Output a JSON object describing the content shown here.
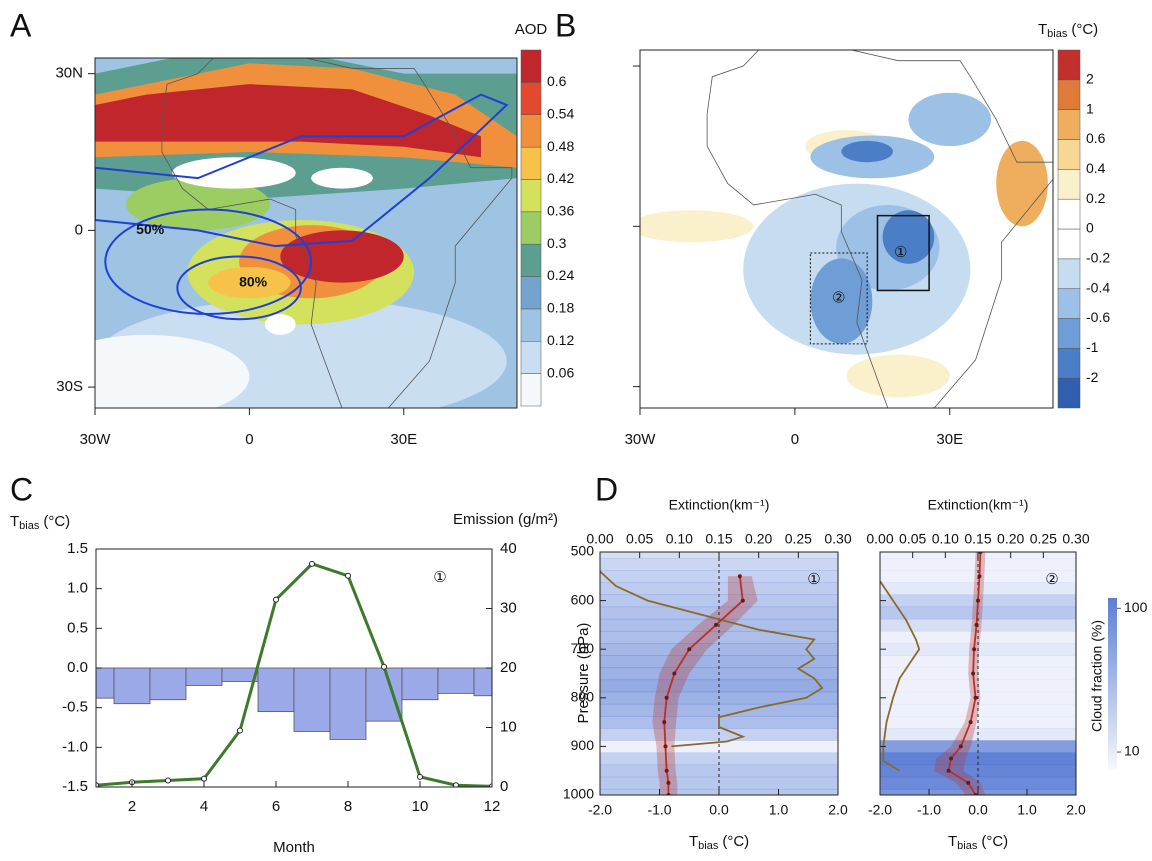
{
  "chart_data": [
    {
      "type": "map",
      "panel": "A",
      "xlim": [
        -30,
        52
      ],
      "ylim": [
        -34,
        33
      ],
      "xticks": [
        {
          "value": -30,
          "label": "30W"
        },
        0,
        {
          "value": 30,
          "label": "30E"
        }
      ],
      "yticks": [
        {
          "value": 30,
          "label": "30N"
        },
        0,
        {
          "value": -30,
          "label": "30S"
        }
      ],
      "colorbar_title": "AOD",
      "colorbar_ticks": [
        0.06,
        0.12,
        0.18,
        0.24,
        0.3,
        0.36,
        0.42,
        0.48,
        0.54,
        0.6
      ],
      "colorbar_colors": [
        "#f5f8fb",
        "#c9def0",
        "#9fc4e3",
        "#74a3d0",
        "#5c9f90",
        "#9ccd63",
        "#d3e15c",
        "#f6c24a",
        "#f0903c",
        "#e2492f",
        "#c1262c"
      ],
      "annotations": [
        "50%",
        "80%"
      ],
      "annotation_color": "#1f3fd8"
    },
    {
      "type": "map",
      "panel": "B",
      "xlim": [
        -30,
        50
      ],
      "ylim": [
        -34,
        33
      ],
      "xticks": [
        {
          "value": -30,
          "label": "30W"
        },
        0,
        {
          "value": 30,
          "label": "30E"
        }
      ],
      "colorbar_title": {
        "text": "T",
        "subscript": "bias",
        "unit": "(°C)"
      },
      "colorbar_ticks": [
        -2,
        -1,
        -0.6,
        -0.4,
        -0.2,
        0,
        0.2,
        0.4,
        0.6,
        1,
        2
      ],
      "colorbar_colors": [
        "#2f5fae",
        "#4a7ec6",
        "#6f9dd6",
        "#9dc0e6",
        "#c6dcf1",
        "#ffffff",
        "#ffffff",
        "#fbf0cc",
        "#f7d793",
        "#efae5e",
        "#e07a38",
        "#c1302c"
      ],
      "annotations": [
        "②",
        "①"
      ]
    },
    {
      "type": "bar_line",
      "panel": "C",
      "x": [
        1,
        2,
        3,
        4,
        5,
        6,
        7,
        8,
        9,
        10,
        11,
        12
      ],
      "xlim": [
        1,
        12
      ],
      "xticks": [
        2,
        4,
        6,
        8,
        10,
        12
      ],
      "xlabel": "Month",
      "ylabel": {
        "text": "T",
        "subscript": "bias",
        "unit": "(°C)"
      },
      "ylim": [
        -1.5,
        1.5
      ],
      "yticks": [
        -1.5,
        {
          "value": -1,
          "label": "-1.0"
        },
        -0.5,
        {
          "value": 0,
          "label": "0.0"
        },
        0.5,
        {
          "value": 1,
          "label": "1.0"
        },
        1.5
      ],
      "y2label": "Emission (g/m²)",
      "y2label_color": "#3d7a2b",
      "y2lim": [
        0,
        40
      ],
      "y2ticks": [
        0,
        10,
        20,
        30,
        40
      ],
      "annotation": "①",
      "series": [
        {
          "type": "bar",
          "color": "#9ba9e8",
          "values": [
            -0.38,
            -0.45,
            -0.4,
            -0.22,
            -0.17,
            -0.55,
            -0.8,
            -0.9,
            -0.67,
            -0.4,
            -0.32,
            -0.35
          ]
        },
        {
          "type": "line",
          "axis": "y2",
          "color": "#3d7a2b",
          "values": [
            0.3,
            0.8,
            1.1,
            1.4,
            9.5,
            31.5,
            37.5,
            35.5,
            20.2,
            1.7,
            0.3,
            0.1
          ]
        }
      ]
    },
    {
      "type": "profile",
      "panel": "D",
      "ylabel": "Pressure (hPa)",
      "ylim": [
        500,
        1000
      ],
      "y_inverted": true,
      "yticks": [
        500,
        600,
        700,
        800,
        900,
        1000
      ],
      "xlabel": {
        "text": "T",
        "subscript": "bias",
        "unit": "(°C)"
      },
      "xlim": [
        -2,
        2
      ],
      "xticks": [
        {
          "value": -2,
          "label": "-2.0"
        },
        {
          "value": -1,
          "label": "-1.0"
        },
        {
          "value": 0,
          "label": "0.0"
        },
        {
          "value": 1,
          "label": "1.0"
        },
        {
          "value": 2,
          "label": "2.0"
        }
      ],
      "x2label": "Extinction(km⁻¹)",
      "x2lim": [
        0,
        0.3
      ],
      "x2ticks": [
        {
          "value": 0,
          "label": "0.00"
        },
        0.05,
        {
          "value": 0.1,
          "label": "0.10"
        },
        0.15,
        {
          "value": 0.2,
          "label": "0.20"
        },
        0.25,
        {
          "value": 0.3,
          "label": "0.30"
        }
      ],
      "tbias_color": "#b5312b",
      "extinction_color": "#8a6a2a",
      "cloud_label": "Cloud fraction (%)",
      "cloud_lim": [
        7.5,
        118
      ],
      "cloud_ticks": [
        10,
        100
      ],
      "cloud_log": true,
      "cloud_color": "#4a6fd0",
      "panels": [
        {
          "annotation": "①",
          "pressure": [
            550,
            600,
            650,
            700,
            750,
            800,
            850,
            900,
            950,
            975,
            1000
          ],
          "tbias": [
            0.35,
            0.4,
            -0.05,
            -0.5,
            -0.75,
            -0.88,
            -0.92,
            -0.9,
            -0.88,
            -0.85,
            -0.85
          ],
          "tbias_error": [
            0.2,
            0.25,
            0.3,
            0.3,
            0.25,
            0.2,
            0.2,
            0.15,
            0.15,
            0.15,
            0.15
          ],
          "extinction_pressure": [
            540,
            570,
            600,
            630,
            660,
            680,
            700,
            720,
            740,
            760,
            780,
            800,
            820,
            840,
            860,
            880,
            890,
            900
          ],
          "extinction": [
            0.0,
            0.02,
            0.06,
            0.13,
            0.2,
            0.27,
            0.26,
            0.27,
            0.25,
            0.27,
            0.28,
            0.26,
            0.2,
            0.15,
            0.15,
            0.18,
            0.16,
            0.09
          ],
          "cloud_pressure": [
            500,
            525,
            550,
            575,
            600,
            625,
            650,
            675,
            700,
            725,
            750,
            775,
            800,
            825,
            850,
            875,
            900,
            925,
            950,
            975,
            1000
          ],
          "cloud_fraction": [
            15,
            18,
            20,
            22,
            25,
            28,
            30,
            30,
            35,
            38,
            40,
            45,
            40,
            35,
            30,
            20,
            10,
            20,
            25,
            25,
            25
          ]
        },
        {
          "annotation": "②",
          "pressure": [
            500,
            550,
            600,
            650,
            700,
            750,
            800,
            850,
            900,
            925,
            950,
            975,
            1000
          ],
          "tbias": [
            0.05,
            0.03,
            0.0,
            -0.03,
            -0.08,
            -0.1,
            -0.05,
            -0.15,
            -0.35,
            -0.55,
            -0.6,
            -0.2,
            -0.05
          ],
          "tbias_error": [
            0.1,
            0.1,
            0.1,
            0.1,
            0.1,
            0.1,
            0.1,
            0.12,
            0.2,
            0.3,
            0.3,
            0.25,
            0.2
          ],
          "extinction_pressure": [
            560,
            600,
            640,
            680,
            700,
            720,
            760,
            800,
            850,
            900,
            930,
            950
          ],
          "extinction": [
            0.0,
            0.02,
            0.04,
            0.055,
            0.06,
            0.05,
            0.03,
            0.02,
            0.01,
            0.005,
            0.005,
            0.03
          ],
          "cloud_pressure": [
            500,
            525,
            550,
            575,
            600,
            625,
            650,
            675,
            700,
            725,
            750,
            775,
            800,
            825,
            850,
            875,
            900,
            925,
            950,
            975,
            1000
          ],
          "cloud_fraction": [
            10,
            10,
            10,
            12,
            20,
            25,
            15,
            10,
            12,
            10,
            10,
            10,
            10,
            10,
            10,
            12,
            60,
            110,
            100,
            90,
            70
          ]
        }
      ]
    }
  ]
}
